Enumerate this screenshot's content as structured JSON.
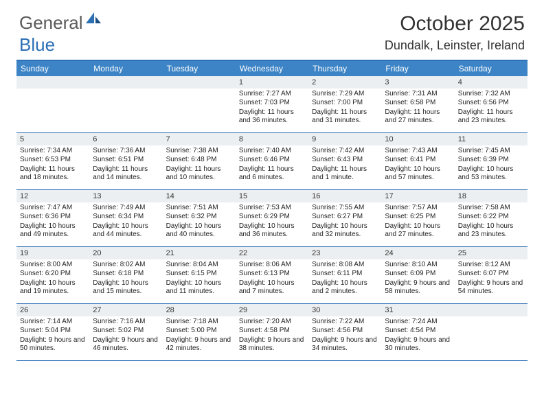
{
  "logo": {
    "general": "General",
    "blue": "Blue"
  },
  "title": "October 2025",
  "location": "Dundalk, Leinster, Ireland",
  "colors": {
    "header_bg": "#3c84c6",
    "border": "#2c6fb5",
    "daynum_bg": "#eceff1",
    "text": "#222222",
    "logo_gray": "#5a5a5a",
    "logo_blue": "#2c6fb5"
  },
  "day_names": [
    "Sunday",
    "Monday",
    "Tuesday",
    "Wednesday",
    "Thursday",
    "Friday",
    "Saturday"
  ],
  "weeks": [
    [
      {
        "n": "",
        "sr": "",
        "ss": "",
        "dl": ""
      },
      {
        "n": "",
        "sr": "",
        "ss": "",
        "dl": ""
      },
      {
        "n": "",
        "sr": "",
        "ss": "",
        "dl": ""
      },
      {
        "n": "1",
        "sr": "Sunrise: 7:27 AM",
        "ss": "Sunset: 7:03 PM",
        "dl": "Daylight: 11 hours and 36 minutes."
      },
      {
        "n": "2",
        "sr": "Sunrise: 7:29 AM",
        "ss": "Sunset: 7:00 PM",
        "dl": "Daylight: 11 hours and 31 minutes."
      },
      {
        "n": "3",
        "sr": "Sunrise: 7:31 AM",
        "ss": "Sunset: 6:58 PM",
        "dl": "Daylight: 11 hours and 27 minutes."
      },
      {
        "n": "4",
        "sr": "Sunrise: 7:32 AM",
        "ss": "Sunset: 6:56 PM",
        "dl": "Daylight: 11 hours and 23 minutes."
      }
    ],
    [
      {
        "n": "5",
        "sr": "Sunrise: 7:34 AM",
        "ss": "Sunset: 6:53 PM",
        "dl": "Daylight: 11 hours and 18 minutes."
      },
      {
        "n": "6",
        "sr": "Sunrise: 7:36 AM",
        "ss": "Sunset: 6:51 PM",
        "dl": "Daylight: 11 hours and 14 minutes."
      },
      {
        "n": "7",
        "sr": "Sunrise: 7:38 AM",
        "ss": "Sunset: 6:48 PM",
        "dl": "Daylight: 11 hours and 10 minutes."
      },
      {
        "n": "8",
        "sr": "Sunrise: 7:40 AM",
        "ss": "Sunset: 6:46 PM",
        "dl": "Daylight: 11 hours and 6 minutes."
      },
      {
        "n": "9",
        "sr": "Sunrise: 7:42 AM",
        "ss": "Sunset: 6:43 PM",
        "dl": "Daylight: 11 hours and 1 minute."
      },
      {
        "n": "10",
        "sr": "Sunrise: 7:43 AM",
        "ss": "Sunset: 6:41 PM",
        "dl": "Daylight: 10 hours and 57 minutes."
      },
      {
        "n": "11",
        "sr": "Sunrise: 7:45 AM",
        "ss": "Sunset: 6:39 PM",
        "dl": "Daylight: 10 hours and 53 minutes."
      }
    ],
    [
      {
        "n": "12",
        "sr": "Sunrise: 7:47 AM",
        "ss": "Sunset: 6:36 PM",
        "dl": "Daylight: 10 hours and 49 minutes."
      },
      {
        "n": "13",
        "sr": "Sunrise: 7:49 AM",
        "ss": "Sunset: 6:34 PM",
        "dl": "Daylight: 10 hours and 44 minutes."
      },
      {
        "n": "14",
        "sr": "Sunrise: 7:51 AM",
        "ss": "Sunset: 6:32 PM",
        "dl": "Daylight: 10 hours and 40 minutes."
      },
      {
        "n": "15",
        "sr": "Sunrise: 7:53 AM",
        "ss": "Sunset: 6:29 PM",
        "dl": "Daylight: 10 hours and 36 minutes."
      },
      {
        "n": "16",
        "sr": "Sunrise: 7:55 AM",
        "ss": "Sunset: 6:27 PM",
        "dl": "Daylight: 10 hours and 32 minutes."
      },
      {
        "n": "17",
        "sr": "Sunrise: 7:57 AM",
        "ss": "Sunset: 6:25 PM",
        "dl": "Daylight: 10 hours and 27 minutes."
      },
      {
        "n": "18",
        "sr": "Sunrise: 7:58 AM",
        "ss": "Sunset: 6:22 PM",
        "dl": "Daylight: 10 hours and 23 minutes."
      }
    ],
    [
      {
        "n": "19",
        "sr": "Sunrise: 8:00 AM",
        "ss": "Sunset: 6:20 PM",
        "dl": "Daylight: 10 hours and 19 minutes."
      },
      {
        "n": "20",
        "sr": "Sunrise: 8:02 AM",
        "ss": "Sunset: 6:18 PM",
        "dl": "Daylight: 10 hours and 15 minutes."
      },
      {
        "n": "21",
        "sr": "Sunrise: 8:04 AM",
        "ss": "Sunset: 6:15 PM",
        "dl": "Daylight: 10 hours and 11 minutes."
      },
      {
        "n": "22",
        "sr": "Sunrise: 8:06 AM",
        "ss": "Sunset: 6:13 PM",
        "dl": "Daylight: 10 hours and 7 minutes."
      },
      {
        "n": "23",
        "sr": "Sunrise: 8:08 AM",
        "ss": "Sunset: 6:11 PM",
        "dl": "Daylight: 10 hours and 2 minutes."
      },
      {
        "n": "24",
        "sr": "Sunrise: 8:10 AM",
        "ss": "Sunset: 6:09 PM",
        "dl": "Daylight: 9 hours and 58 minutes."
      },
      {
        "n": "25",
        "sr": "Sunrise: 8:12 AM",
        "ss": "Sunset: 6:07 PM",
        "dl": "Daylight: 9 hours and 54 minutes."
      }
    ],
    [
      {
        "n": "26",
        "sr": "Sunrise: 7:14 AM",
        "ss": "Sunset: 5:04 PM",
        "dl": "Daylight: 9 hours and 50 minutes."
      },
      {
        "n": "27",
        "sr": "Sunrise: 7:16 AM",
        "ss": "Sunset: 5:02 PM",
        "dl": "Daylight: 9 hours and 46 minutes."
      },
      {
        "n": "28",
        "sr": "Sunrise: 7:18 AM",
        "ss": "Sunset: 5:00 PM",
        "dl": "Daylight: 9 hours and 42 minutes."
      },
      {
        "n": "29",
        "sr": "Sunrise: 7:20 AM",
        "ss": "Sunset: 4:58 PM",
        "dl": "Daylight: 9 hours and 38 minutes."
      },
      {
        "n": "30",
        "sr": "Sunrise: 7:22 AM",
        "ss": "Sunset: 4:56 PM",
        "dl": "Daylight: 9 hours and 34 minutes."
      },
      {
        "n": "31",
        "sr": "Sunrise: 7:24 AM",
        "ss": "Sunset: 4:54 PM",
        "dl": "Daylight: 9 hours and 30 minutes."
      },
      {
        "n": "",
        "sr": "",
        "ss": "",
        "dl": ""
      }
    ]
  ]
}
